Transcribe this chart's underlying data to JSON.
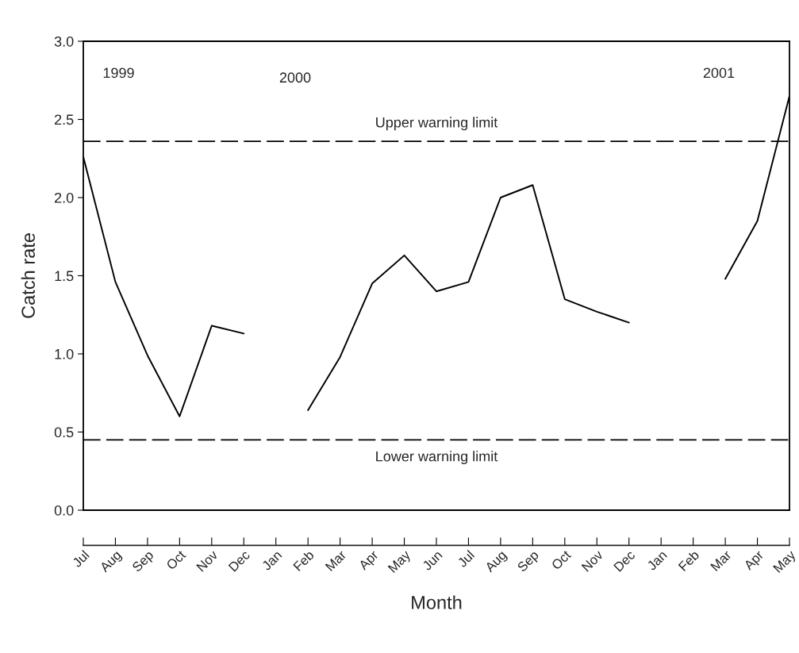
{
  "chart_data": {
    "type": "line",
    "xlabel": "Month",
    "ylabel": "Catch rate",
    "categories": [
      "Jul",
      "Aug",
      "Sep",
      "Oct",
      "Nov",
      "Dec",
      "Jan",
      "Feb",
      "Mar",
      "Apr",
      "May",
      "Jun",
      "Jul",
      "Aug",
      "Sep",
      "Oct",
      "Nov",
      "Dec",
      "Jan",
      "Feb",
      "Mar",
      "Apr",
      "May"
    ],
    "series": [
      {
        "color": "#000000",
        "values": [
          2.26,
          1.46,
          0.99,
          0.6,
          1.18,
          1.13,
          null,
          0.64,
          0.98,
          1.45,
          1.63,
          1.4,
          1.46,
          2.0,
          2.08,
          1.35,
          1.27,
          1.2,
          null,
          null,
          1.48,
          1.85,
          2.65
        ]
      }
    ],
    "ylim": [
      0,
      3
    ],
    "yticks": [
      {
        "value": 0,
        "label": "0.0"
      },
      {
        "value": 0.5,
        "label": "0.5"
      },
      {
        "value": 1,
        "label": "1.0"
      },
      {
        "value": 1.5,
        "label": "1.5"
      },
      {
        "value": 2,
        "label": "2.0"
      },
      {
        "value": 2.5,
        "label": "2.5"
      },
      {
        "value": 3,
        "label": "3.0"
      }
    ],
    "ref_lines": [
      {
        "axis": "y",
        "value": 2.36,
        "label": "Upper warning limit",
        "color": "#000000",
        "line_style": "dashed"
      },
      {
        "axis": "y",
        "value": 0.45,
        "label": "Lower warning limit",
        "color": "#000000",
        "line_style": "dashed"
      }
    ],
    "annotations": [
      "1999",
      "2000",
      "2001"
    ],
    "line_style": "solid",
    "marker": "none",
    "grid": false,
    "legend": false
  }
}
